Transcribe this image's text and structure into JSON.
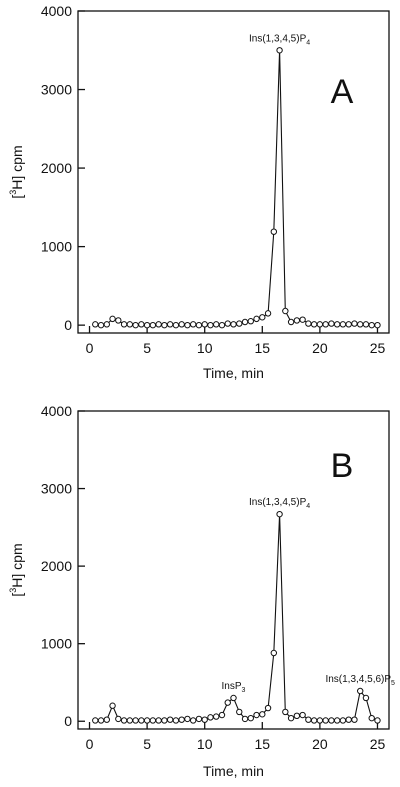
{
  "chart_data": [
    {
      "type": "line",
      "panel_label": "A",
      "xlabel": "Time, min",
      "ylabel_parts": [
        "[",
        "3",
        "H] cpm"
      ],
      "xlim": [
        -1,
        26
      ],
      "ylim": [
        -100,
        4000
      ],
      "xticks": [
        0,
        5,
        10,
        15,
        20,
        25
      ],
      "yticks": [
        0,
        1000,
        2000,
        3000,
        4000
      ],
      "grid": false,
      "markers": "open-circle",
      "x": [
        0.5,
        1.0,
        1.5,
        2.0,
        2.5,
        3.0,
        3.5,
        4.0,
        4.5,
        5.0,
        5.5,
        6.0,
        6.5,
        7.0,
        7.5,
        8.0,
        8.5,
        9.0,
        9.5,
        10.0,
        10.5,
        11.0,
        11.5,
        12.0,
        12.5,
        13.0,
        13.5,
        14.0,
        14.5,
        15.0,
        15.5,
        16.0,
        16.5,
        17.0,
        17.5,
        18.0,
        18.5,
        19.0,
        19.5,
        20.0,
        20.5,
        21.0,
        21.5,
        22.0,
        22.5,
        23.0,
        23.5,
        24.0,
        24.5,
        25.0
      ],
      "y": [
        10,
        0,
        10,
        80,
        60,
        10,
        10,
        0,
        10,
        0,
        0,
        10,
        0,
        10,
        0,
        10,
        0,
        10,
        0,
        10,
        0,
        10,
        0,
        20,
        10,
        20,
        40,
        50,
        80,
        100,
        150,
        1190,
        3500,
        180,
        40,
        60,
        70,
        20,
        10,
        10,
        10,
        20,
        10,
        10,
        10,
        20,
        10,
        10,
        0,
        0
      ],
      "annotations": [
        {
          "main": "Ins(1,3,4,5)P",
          "sub": "4",
          "x": 16.5,
          "y": 3500
        }
      ]
    },
    {
      "type": "line",
      "panel_label": "B",
      "xlabel": "Time, min",
      "ylabel_parts": [
        "[",
        "3",
        "H] cpm"
      ],
      "xlim": [
        -1,
        26
      ],
      "ylim": [
        -100,
        4000
      ],
      "xticks": [
        0,
        5,
        10,
        15,
        20,
        25
      ],
      "yticks": [
        0,
        1000,
        2000,
        3000,
        4000
      ],
      "grid": false,
      "markers": "open-circle",
      "x": [
        0.5,
        1.0,
        1.5,
        2.0,
        2.5,
        3.0,
        3.5,
        4.0,
        4.5,
        5.0,
        5.5,
        6.0,
        6.5,
        7.0,
        7.5,
        8.0,
        8.5,
        9.0,
        9.5,
        10.0,
        10.5,
        11.0,
        11.5,
        12.0,
        12.5,
        13.0,
        13.5,
        14.0,
        14.5,
        15.0,
        15.5,
        16.0,
        16.5,
        17.0,
        17.5,
        18.0,
        18.5,
        19.0,
        19.5,
        20.0,
        20.5,
        21.0,
        21.5,
        22.0,
        22.5,
        23.0,
        23.5,
        24.0,
        24.5,
        25.0
      ],
      "y": [
        10,
        10,
        20,
        200,
        30,
        10,
        10,
        10,
        10,
        10,
        10,
        10,
        10,
        20,
        10,
        20,
        30,
        10,
        30,
        20,
        50,
        60,
        80,
        240,
        300,
        120,
        30,
        40,
        80,
        90,
        170,
        880,
        2670,
        120,
        40,
        70,
        80,
        20,
        10,
        10,
        10,
        10,
        10,
        10,
        20,
        20,
        390,
        300,
        40,
        10
      ],
      "annotations": [
        {
          "main": "InsP",
          "sub": "3",
          "x": 12.5,
          "y": 300
        },
        {
          "main": "Ins(1,3,4,5)P",
          "sub": "4",
          "x": 16.5,
          "y": 2670
        },
        {
          "main": "Ins(1,3,4,5,6)P",
          "sub": "5",
          "x": 23.5,
          "y": 390
        }
      ]
    }
  ]
}
